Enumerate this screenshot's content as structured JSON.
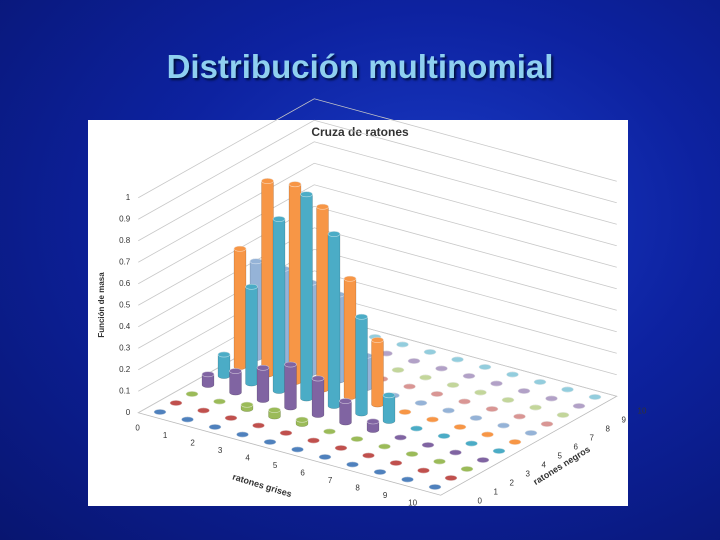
{
  "slide_title": "Distribución multinomial",
  "chart_data": {
    "type": "bar3d",
    "title": "Cruza de ratones",
    "x_label": "ratones grises",
    "z_label": "ratones negros",
    "y_label": "Función de masa",
    "categories": [
      "0",
      "1",
      "2",
      "3",
      "4",
      "5",
      "6",
      "7",
      "8",
      "9",
      "10"
    ],
    "ylim": [
      0,
      1
    ],
    "yticks": [
      0,
      0.1,
      0.2,
      0.3,
      0.4,
      0.5,
      0.6,
      0.7,
      0.8,
      0.9,
      1
    ],
    "series": [
      {
        "name": "0",
        "color": "#4f81bd",
        "values": [
          0,
          0,
          0,
          0,
          0,
          0,
          0,
          0,
          0,
          0,
          0
        ]
      },
      {
        "name": "1",
        "color": "#c0504d",
        "values": [
          0,
          0,
          0,
          0,
          0,
          0,
          0,
          0,
          0,
          0,
          0
        ]
      },
      {
        "name": "2",
        "color": "#9bbb59",
        "values": [
          0,
          0,
          0.02,
          0.03,
          0.02,
          0,
          0,
          0,
          0,
          0,
          0
        ]
      },
      {
        "name": "3",
        "color": "#8064a2",
        "values": [
          0.05,
          0.1,
          0.15,
          0.2,
          0.17,
          0.1,
          0.04,
          0,
          0,
          0,
          0
        ]
      },
      {
        "name": "4",
        "color": "#4bacc6",
        "values": [
          0.1,
          0.45,
          0.8,
          0.95,
          0.8,
          0.45,
          0.12,
          0,
          0,
          0,
          0
        ]
      },
      {
        "name": "5",
        "color": "#f79646",
        "values": [
          0.55,
          0.9,
          0.92,
          0.85,
          0.55,
          0.3,
          0,
          0,
          0,
          0,
          0
        ]
      },
      {
        "name": "6",
        "color": "#95b3d7",
        "values": [
          0.45,
          0.45,
          0.42,
          0.4,
          0.15,
          0,
          0,
          0,
          0,
          0,
          0
        ]
      },
      {
        "name": "7",
        "color": "#d99694",
        "values": [
          0.1,
          0.08,
          0.05,
          0.02,
          0,
          0,
          0,
          0,
          0,
          0,
          0
        ]
      },
      {
        "name": "8",
        "color": "#c3d69b",
        "values": [
          0,
          0,
          0,
          0,
          0,
          0,
          0,
          0,
          0,
          0,
          0
        ]
      },
      {
        "name": "9",
        "color": "#b2a1c7",
        "values": [
          0,
          0,
          0,
          0,
          0,
          0,
          0,
          0,
          0,
          0,
          0
        ]
      },
      {
        "name": "10",
        "color": "#93cddd",
        "values": [
          0,
          0,
          0,
          0,
          0,
          0,
          0,
          0,
          0,
          0,
          0
        ]
      }
    ]
  }
}
